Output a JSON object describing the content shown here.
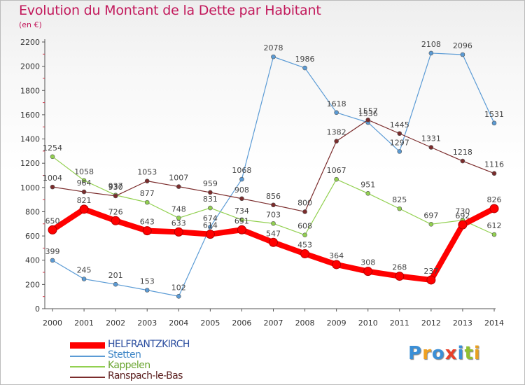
{
  "chart_data": {
    "type": "line",
    "title": "Evolution du Montant de la Dette par Habitant",
    "subtitle": "(en €)",
    "xlabel": "",
    "ylabel": "",
    "ylim": [
      0,
      2200
    ],
    "yticks": [
      0,
      200,
      400,
      600,
      800,
      1000,
      1200,
      1400,
      1600,
      1800,
      2000,
      2200
    ],
    "categories": [
      "2000",
      "2001",
      "2002",
      "2003",
      "2004",
      "2005",
      "2006",
      "2007",
      "2008",
      "2009",
      "2010",
      "2011",
      "2012",
      "2013",
      "2014"
    ],
    "grid": false,
    "legend_position": "bottom-left",
    "series": [
      {
        "name": "HELFRANTZKIRCH",
        "color": "#ff0000",
        "values": [
          650,
          821,
          726,
          643,
          633,
          614,
          651,
          547,
          453,
          364,
          308,
          268,
          237,
          692,
          826
        ]
      },
      {
        "name": "Stetten",
        "color": "#5b9bd5",
        "values": [
          399,
          245,
          201,
          153,
          102,
          674,
          1068,
          2078,
          1986,
          1618,
          1536,
          1297,
          2108,
          2096,
          1531
        ]
      },
      {
        "name": "Kappelen",
        "color": "#92d050",
        "values": [
          1254,
          1058,
          937,
          877,
          748,
          831,
          734,
          703,
          608,
          1067,
          951,
          825,
          697,
          730,
          612
        ]
      },
      {
        "name": "Ranspach-le-Bas",
        "color": "#7b2c2c",
        "values": [
          1004,
          964,
          930,
          1053,
          1007,
          959,
          908,
          856,
          800,
          1382,
          1557,
          1445,
          1331,
          1218,
          1116
        ]
      }
    ]
  },
  "logo": {
    "letters": [
      "P",
      "r",
      "o",
      "x",
      "i",
      "t",
      "i"
    ],
    "colors": [
      "#3b8fd6",
      "#f0a020",
      "#3b8fd6",
      "#e8402a",
      "#3b8fd6",
      "#90c030",
      "#e8a020"
    ]
  }
}
